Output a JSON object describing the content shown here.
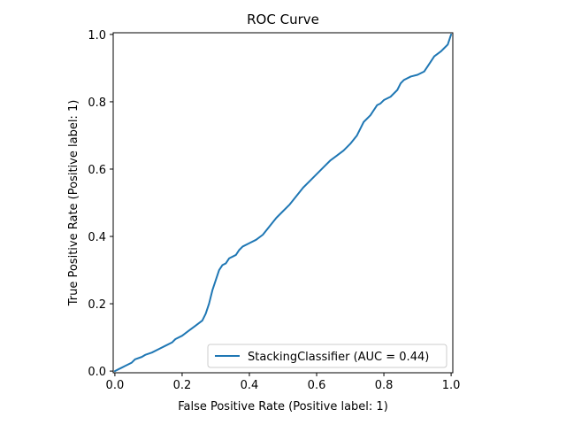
{
  "chart_data": {
    "type": "line",
    "title": "ROC Curve",
    "xlabel": "False Positive Rate (Positive label: 1)",
    "ylabel": "True Positive Rate (Positive label: 1)",
    "xlim": [
      -0.005,
      1.005
    ],
    "ylim": [
      -0.005,
      1.005
    ],
    "xticks": [
      0.0,
      0.2,
      0.4,
      0.6,
      0.8,
      1.0
    ],
    "yticks": [
      0.0,
      0.2,
      0.4,
      0.6,
      0.8,
      1.0
    ],
    "xtick_labels": [
      "0.0",
      "0.2",
      "0.4",
      "0.6",
      "0.8",
      "1.0"
    ],
    "ytick_labels": [
      "0.0",
      "0.2",
      "0.4",
      "0.6",
      "0.8",
      "1.0"
    ],
    "grid": false,
    "legend_position": "lower-right",
    "series": [
      {
        "name": "StackingClassifier (AUC = 0.44)",
        "color": "#1f77b4",
        "x": [
          0.0,
          0.01,
          0.02,
          0.03,
          0.05,
          0.06,
          0.08,
          0.09,
          0.11,
          0.13,
          0.15,
          0.17,
          0.18,
          0.2,
          0.22,
          0.24,
          0.26,
          0.27,
          0.28,
          0.29,
          0.3,
          0.31,
          0.32,
          0.33,
          0.34,
          0.36,
          0.37,
          0.38,
          0.4,
          0.42,
          0.44,
          0.46,
          0.48,
          0.5,
          0.52,
          0.54,
          0.56,
          0.58,
          0.6,
          0.62,
          0.64,
          0.66,
          0.68,
          0.7,
          0.72,
          0.73,
          0.74,
          0.76,
          0.78,
          0.79,
          0.8,
          0.82,
          0.84,
          0.85,
          0.86,
          0.88,
          0.9,
          0.92,
          0.93,
          0.94,
          0.95,
          0.97,
          0.98,
          0.99,
          1.0
        ],
        "y": [
          0.0,
          0.005,
          0.01,
          0.015,
          0.025,
          0.035,
          0.042,
          0.048,
          0.055,
          0.065,
          0.075,
          0.085,
          0.095,
          0.105,
          0.12,
          0.135,
          0.15,
          0.17,
          0.2,
          0.24,
          0.27,
          0.3,
          0.315,
          0.32,
          0.335,
          0.345,
          0.36,
          0.37,
          0.38,
          0.39,
          0.405,
          0.43,
          0.455,
          0.475,
          0.495,
          0.52,
          0.545,
          0.565,
          0.585,
          0.605,
          0.625,
          0.64,
          0.655,
          0.675,
          0.7,
          0.72,
          0.74,
          0.76,
          0.79,
          0.795,
          0.805,
          0.815,
          0.835,
          0.855,
          0.865,
          0.875,
          0.88,
          0.89,
          0.905,
          0.92,
          0.935,
          0.95,
          0.96,
          0.97,
          1.0
        ]
      }
    ]
  }
}
